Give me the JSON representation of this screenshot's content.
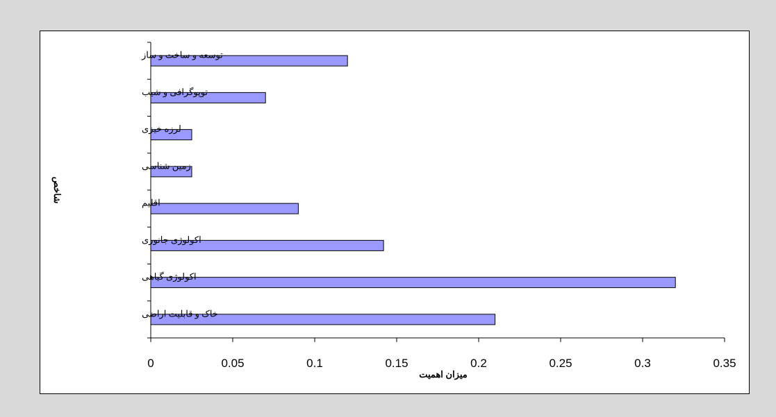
{
  "chart_data": {
    "type": "bar",
    "orientation": "horizontal",
    "categories": [
      "توسعه و ساخت و ساز",
      "توپوگرافی و شیب",
      "لرزه خیزی",
      "زمین شناسی",
      "اقلیم",
      "اکولوژی جانوری",
      "اکولوژی گیاهی",
      "خاک و قابلیت اراضی"
    ],
    "values": [
      0.12,
      0.07,
      0.025,
      0.025,
      0.09,
      0.142,
      0.32,
      0.21
    ],
    "x_ticks": [
      "0",
      "0.05",
      "0.1",
      "0.15",
      "0.2",
      "0.25",
      "0.3",
      "0.35"
    ],
    "xlim": [
      0,
      0.35
    ],
    "xlabel": "میزان اهمیت",
    "ylabel": "شاخص",
    "title": "",
    "grid": false,
    "legend": "none",
    "bar_color": "#9999ff",
    "bar_stroke": "#000000"
  }
}
